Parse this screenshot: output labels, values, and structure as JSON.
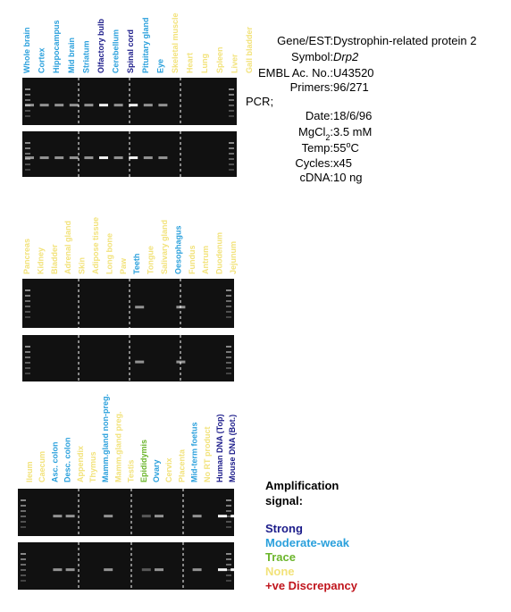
{
  "panels": [
    {
      "lanes": [
        {
          "label": "Whole brain",
          "color": "#2aa0dc"
        },
        {
          "label": "Cortex",
          "color": "#2aa0dc"
        },
        {
          "label": "Hippocampus",
          "color": "#2aa0dc"
        },
        {
          "label": "Mid brain",
          "color": "#2aa0dc"
        },
        {
          "label": "Striatum",
          "color": "#2aa0dc"
        },
        {
          "label": "Olfactory bulb",
          "color": "#1c1c8a"
        },
        {
          "label": "Cerebellum",
          "color": "#2aa0dc"
        },
        {
          "label": "Spinal cord",
          "color": "#1c1c8a"
        },
        {
          "label": "Pituitary gland",
          "color": "#2aa0dc"
        },
        {
          "label": "Eye",
          "color": "#2aa0dc"
        },
        {
          "label": "Skeletal muscle",
          "color": "#f2e27a"
        },
        {
          "label": "Heart",
          "color": "#f2e27a"
        },
        {
          "label": "Lung",
          "color": "#f2e27a"
        },
        {
          "label": "Spleen",
          "color": "#f2e27a"
        },
        {
          "label": "Liver",
          "color": "#f2e27a"
        },
        {
          "label": "Gall bladder",
          "color": "#f2e27a"
        }
      ]
    },
    {
      "lanes": [
        {
          "label": "Pancreas",
          "color": "#f2e27a"
        },
        {
          "label": "Kidney",
          "color": "#f2e27a"
        },
        {
          "label": "Bladder",
          "color": "#f2e27a"
        },
        {
          "label": "Adrenal gland",
          "color": "#f2e27a"
        },
        {
          "label": "Skin",
          "color": "#f2e27a"
        },
        {
          "label": "Adipose tissue",
          "color": "#f2e27a"
        },
        {
          "label": "Long bone",
          "color": "#f2e27a"
        },
        {
          "label": "Paw",
          "color": "#f2e27a"
        },
        {
          "label": "Teeth",
          "color": "#2aa0dc"
        },
        {
          "label": "Tongue",
          "color": "#f2e27a"
        },
        {
          "label": "Salivary gland",
          "color": "#f2e27a"
        },
        {
          "label": "Oesophagus",
          "color": "#2aa0dc"
        },
        {
          "label": "Fundus",
          "color": "#f2e27a"
        },
        {
          "label": "Antrum",
          "color": "#f2e27a"
        },
        {
          "label": "Duodenum",
          "color": "#f2e27a"
        },
        {
          "label": "Jejunum",
          "color": "#f2e27a"
        }
      ]
    },
    {
      "lanes": [
        {
          "label": "Ileum",
          "color": "#f2e27a"
        },
        {
          "label": "Caecum",
          "color": "#f2e27a"
        },
        {
          "label": "Asc. colon",
          "color": "#2aa0dc"
        },
        {
          "label": "Desc. colon",
          "color": "#2aa0dc"
        },
        {
          "label": "Appendix",
          "color": "#f2e27a"
        },
        {
          "label": "Thymus",
          "color": "#f2e27a"
        },
        {
          "label": "Mamm.gland non-preg.",
          "color": "#2aa0dc"
        },
        {
          "label": "Mamm.gland preg.",
          "color": "#f2e27a"
        },
        {
          "label": "Testis",
          "color": "#f2e27a"
        },
        {
          "label": "Epididymis",
          "color": "#6bb52b"
        },
        {
          "label": "Ovary",
          "color": "#2aa0dc"
        },
        {
          "label": "Cervix",
          "color": "#f2e27a"
        },
        {
          "label": "Placenta",
          "color": "#f2e27a"
        },
        {
          "label": "Mid-term foetus",
          "color": "#2aa0dc"
        },
        {
          "label": "No RT product",
          "color": "#f2e27a"
        },
        {
          "label": "Human DNA (Top)",
          "color": "#1c1c8a"
        },
        {
          "label": "Mouse DNA (Bot.)",
          "color": "#1c1c8a"
        }
      ]
    }
  ],
  "info": {
    "rows": [
      [
        {
          "text": "Gene/EST:"
        },
        {
          "text": "Dystrophin-related protein 2",
          "value": true
        }
      ],
      [
        {
          "text": "Symbol:"
        },
        {
          "text": "Drp2",
          "value": true,
          "italic": true
        }
      ],
      [
        {
          "text": "EMBL Ac. No.:"
        },
        {
          "text": "U43520",
          "value": true
        }
      ],
      [
        {
          "text": "Primers:"
        },
        {
          "text": "96/271",
          "value": true
        }
      ],
      [
        {
          "text": "PCR;",
          "heading": true
        }
      ],
      [
        {
          "text": "Date:"
        },
        {
          "text": "18/6/96",
          "value": true
        }
      ],
      [
        {
          "text": "MgCl"
        },
        {
          "text": "2",
          "sub": true
        },
        {
          "text": ":"
        },
        {
          "text": "3.5 mM",
          "value": true
        }
      ],
      [
        {
          "text": "Temp:"
        },
        {
          "text": "55",
          "value": true
        },
        {
          "text": "o",
          "sup": true,
          "value": true
        },
        {
          "text": "C",
          "value": true
        }
      ],
      [
        {
          "text": "Cycles:"
        },
        {
          "text": "x45",
          "value": true
        }
      ],
      [
        {
          "text": "cDNA:"
        },
        {
          "text": "10 ng",
          "value": true
        }
      ]
    ]
  },
  "legend": {
    "title": [
      "Amplification",
      "signal:"
    ],
    "items": [
      {
        "label": "Strong",
        "color": "#1c1c8a"
      },
      {
        "label": "Moderate-weak",
        "color": "#2aa0dc"
      },
      {
        "label": "Trace",
        "color": "#6bb52b"
      },
      {
        "label": "None",
        "color": "#f2e27a"
      },
      {
        "label": "+ve Discrepancy",
        "color": "#c0141c"
      }
    ]
  }
}
